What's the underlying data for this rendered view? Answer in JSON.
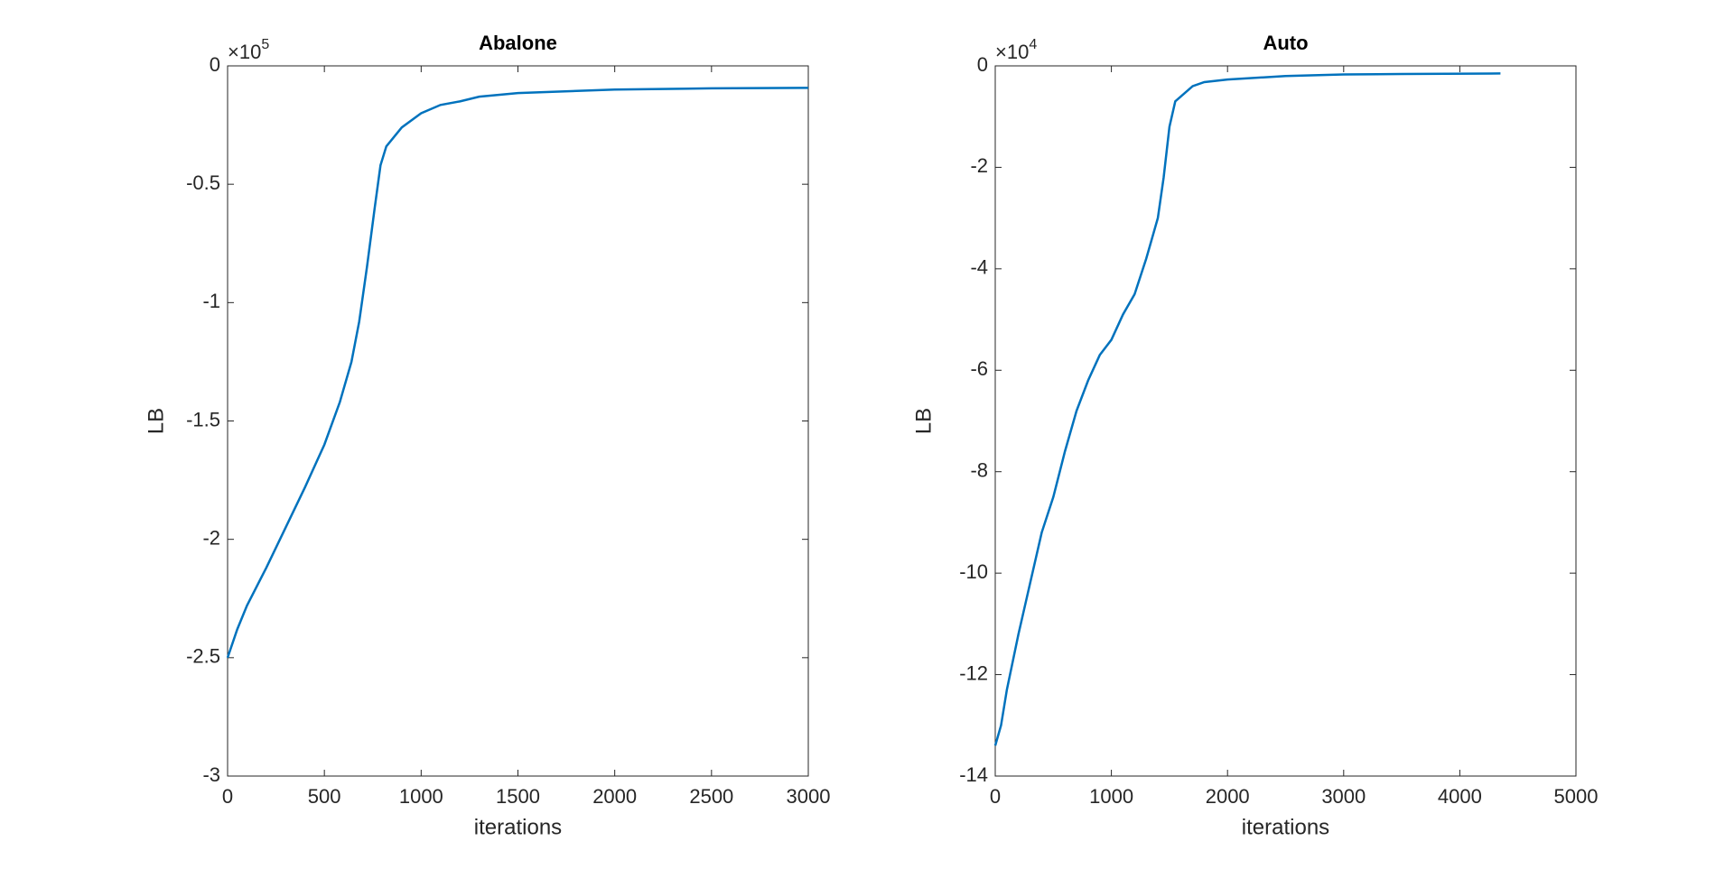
{
  "chart_data": [
    {
      "type": "line",
      "title": "Abalone",
      "x_label": "iterations",
      "y_label": "LB",
      "y_multiplier": {
        "base": "×10",
        "exponent": "5"
      },
      "xlim": [
        0,
        3000
      ],
      "ylim": [
        -3,
        0
      ],
      "xticks": [
        0,
        500,
        1000,
        1500,
        2000,
        2500,
        3000
      ],
      "yticks": [
        0,
        -0.5,
        -1,
        -1.5,
        -2,
        -2.5,
        -3
      ],
      "x": [
        0,
        50,
        100,
        200,
        300,
        400,
        500,
        580,
        640,
        680,
        720,
        760,
        790,
        820,
        860,
        900,
        1000,
        1100,
        1200,
        1300,
        1500,
        2000,
        2500,
        3000
      ],
      "series": [
        {
          "name": "LB",
          "color": "#0072bd",
          "values": [
            -2.5,
            -2.38,
            -2.28,
            -2.12,
            -1.95,
            -1.78,
            -1.6,
            -1.42,
            -1.25,
            -1.08,
            -0.85,
            -0.6,
            -0.42,
            -0.34,
            -0.3,
            -0.26,
            -0.2,
            -0.165,
            -0.15,
            -0.13,
            -0.115,
            -0.1,
            -0.095,
            -0.093
          ]
        }
      ]
    },
    {
      "type": "line",
      "title": "Auto",
      "x_label": "iterations",
      "y_label": "LB",
      "y_multiplier": {
        "base": "×10",
        "exponent": "4"
      },
      "xlim": [
        0,
        5000
      ],
      "ylim": [
        -14,
        0
      ],
      "xticks": [
        0,
        1000,
        2000,
        3000,
        4000,
        5000
      ],
      "yticks": [
        0,
        -2,
        -4,
        -6,
        -8,
        -10,
        -12,
        -14
      ],
      "x": [
        0,
        50,
        100,
        200,
        300,
        400,
        500,
        600,
        700,
        800,
        900,
        1000,
        1100,
        1200,
        1300,
        1400,
        1450,
        1500,
        1550,
        1600,
        1700,
        1800,
        2000,
        2500,
        3000,
        3500,
        4350
      ],
      "series": [
        {
          "name": "LB",
          "color": "#0072bd",
          "values": [
            -13.4,
            -13,
            -12.3,
            -11.2,
            -10.2,
            -9.2,
            -8.5,
            -7.6,
            -6.8,
            -6.2,
            -5.7,
            -5.4,
            -4.9,
            -4.5,
            -3.8,
            -3.0,
            -2.2,
            -1.2,
            -0.7,
            -0.6,
            -0.4,
            -0.32,
            -0.27,
            -0.2,
            -0.17,
            -0.16,
            -0.15
          ]
        }
      ]
    }
  ]
}
